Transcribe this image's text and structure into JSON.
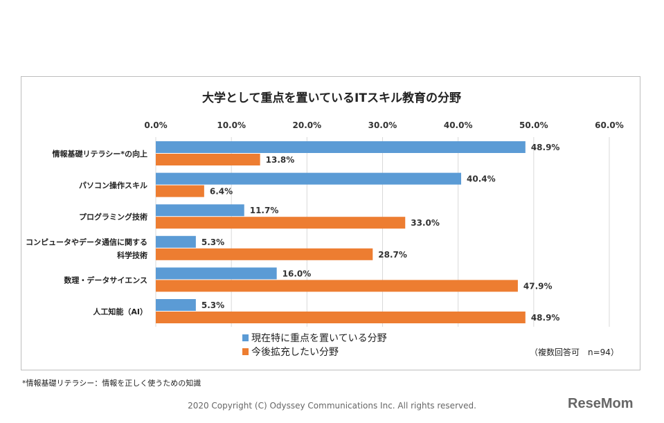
{
  "chart_data": {
    "type": "bar",
    "orientation": "horizontal",
    "title": "大学として重点を置いているITスキル教育の分野",
    "categories": [
      "情報基礎リテラシー*の向上",
      "パソコン操作スキル",
      "プログラミング技術",
      "コンピュータやデータ通信に関する\n科学技術",
      "数理・データサイエンス",
      "人工知能（AI）"
    ],
    "series": [
      {
        "name": "現在特に重点を置いている分野",
        "color": "#5b9bd5",
        "values": [
          48.9,
          40.4,
          11.7,
          5.3,
          16.0,
          5.3
        ]
      },
      {
        "name": "今後拡充したい分野",
        "color": "#ed7d31",
        "values": [
          13.8,
          6.4,
          33.0,
          28.7,
          47.9,
          48.9
        ]
      }
    ],
    "xlim": [
      0,
      60
    ],
    "xticks": [
      "0.0%",
      "10.0%",
      "20.0%",
      "30.0%",
      "40.0%",
      "50.0%",
      "60.0%"
    ],
    "axis_position": "top",
    "grid": true,
    "legend_placement": "bottom",
    "note": "（複数回答可　n=94）"
  },
  "footnote": "*情報基礎リテラシー：情報を正しく使うための知識",
  "copyright": "2020 Copyright (C) Odyssey Communications Inc. All rights reserved.",
  "logo": "ReseMom"
}
